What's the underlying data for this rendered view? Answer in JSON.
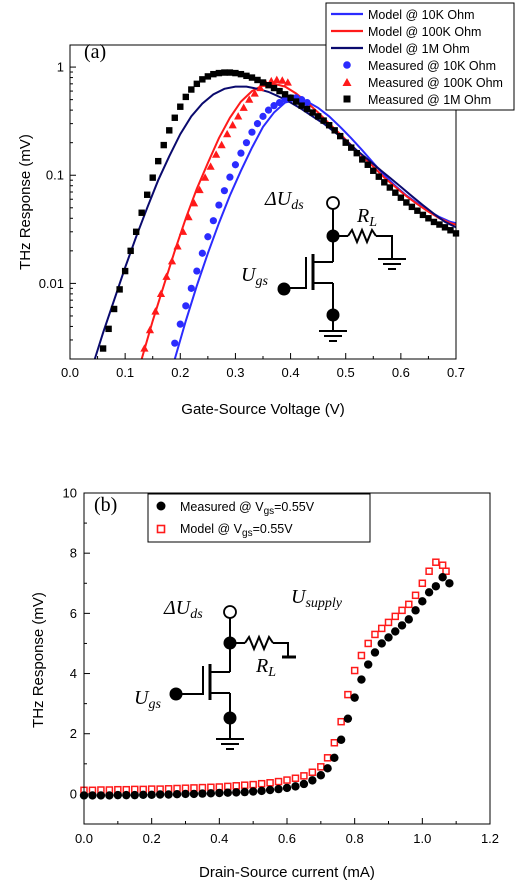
{
  "chart_data": [
    {
      "type": "line",
      "panel_label": "(a)",
      "xlabel": "Gate-Source Voltage (V)",
      "ylabel": "THz Response (mV)",
      "yscale": "log",
      "xlim": [
        0.0,
        0.7
      ],
      "ylim": [
        0.002,
        1.6
      ],
      "xticks": [
        "0.0",
        "0.1",
        "0.2",
        "0.3",
        "0.4",
        "0.5",
        "0.6",
        "0.7"
      ],
      "yticks": [
        "0.01",
        "0.1",
        "1"
      ],
      "legend_position": "top-right",
      "colors": {
        "blue": "#2b2bff",
        "red": "#ff1a1a",
        "navy": "#0a0a6e",
        "black": "#000000"
      },
      "series": [
        {
          "name": "Model @ 10K Ohm",
          "kind": "line",
          "color": "#2b2bff",
          "x": [
            0.19,
            0.21,
            0.23,
            0.25,
            0.27,
            0.29,
            0.31,
            0.33,
            0.35,
            0.37,
            0.39,
            0.41,
            0.43,
            0.45,
            0.47,
            0.49,
            0.51,
            0.53,
            0.55,
            0.57,
            0.59,
            0.61,
            0.63,
            0.65,
            0.67,
            0.69,
            0.7
          ],
          "y": [
            0.002,
            0.0045,
            0.0095,
            0.019,
            0.036,
            0.065,
            0.11,
            0.18,
            0.28,
            0.38,
            0.47,
            0.5,
            0.48,
            0.42,
            0.35,
            0.28,
            0.22,
            0.17,
            0.13,
            0.1,
            0.08,
            0.065,
            0.055,
            0.047,
            0.041,
            0.037,
            0.036
          ]
        },
        {
          "name": "Model @ 100K Ohm",
          "kind": "line",
          "color": "#ff1a1a",
          "x": [
            0.13,
            0.15,
            0.17,
            0.19,
            0.21,
            0.23,
            0.25,
            0.27,
            0.29,
            0.31,
            0.33,
            0.35,
            0.37,
            0.39,
            0.41,
            0.43,
            0.45,
            0.47,
            0.49,
            0.51,
            0.53,
            0.55,
            0.57,
            0.59,
            0.61,
            0.63,
            0.65,
            0.67,
            0.69,
            0.7
          ],
          "y": [
            0.002,
            0.0045,
            0.0095,
            0.02,
            0.04,
            0.075,
            0.13,
            0.22,
            0.34,
            0.48,
            0.6,
            0.68,
            0.7,
            0.66,
            0.57,
            0.47,
            0.38,
            0.3,
            0.24,
            0.19,
            0.15,
            0.12,
            0.095,
            0.078,
            0.064,
            0.054,
            0.046,
            0.04,
            0.036,
            0.035
          ]
        },
        {
          "name": "Model @ 1M Ohm",
          "kind": "line",
          "color": "#0a0a6e",
          "x": [
            0.045,
            0.06,
            0.08,
            0.1,
            0.12,
            0.14,
            0.16,
            0.18,
            0.2,
            0.22,
            0.24,
            0.26,
            0.28,
            0.3,
            0.32,
            0.34,
            0.36,
            0.38,
            0.4,
            0.42,
            0.44,
            0.46,
            0.48,
            0.5,
            0.52,
            0.54,
            0.56,
            0.58,
            0.6,
            0.62,
            0.64,
            0.66,
            0.68,
            0.7
          ],
          "y": [
            0.002,
            0.0035,
            0.007,
            0.014,
            0.027,
            0.05,
            0.09,
            0.15,
            0.24,
            0.35,
            0.46,
            0.56,
            0.63,
            0.66,
            0.66,
            0.63,
            0.59,
            0.53,
            0.47,
            0.41,
            0.35,
            0.3,
            0.25,
            0.21,
            0.17,
            0.14,
            0.115,
            0.095,
            0.078,
            0.064,
            0.053,
            0.044,
            0.037,
            0.033
          ]
        },
        {
          "name": "Measured @ 10K Ohm",
          "kind": "marker",
          "marker": "circle",
          "color": "#2b2bff",
          "x": [
            0.19,
            0.2,
            0.21,
            0.22,
            0.23,
            0.24,
            0.25,
            0.26,
            0.27,
            0.28,
            0.29,
            0.3,
            0.31,
            0.32,
            0.33,
            0.34,
            0.35,
            0.36,
            0.37,
            0.38,
            0.39,
            0.4,
            0.41,
            0.42,
            0.43
          ],
          "y": [
            0.0028,
            0.0042,
            0.0062,
            0.009,
            0.013,
            0.019,
            0.027,
            0.038,
            0.053,
            0.072,
            0.096,
            0.125,
            0.16,
            0.2,
            0.25,
            0.3,
            0.35,
            0.4,
            0.44,
            0.47,
            0.5,
            0.52,
            0.52,
            0.5,
            0.47
          ]
        },
        {
          "name": "Measured @ 100K Ohm",
          "kind": "marker",
          "marker": "triangle",
          "color": "#ff1a1a",
          "x": [
            0.135,
            0.145,
            0.155,
            0.165,
            0.175,
            0.185,
            0.195,
            0.205,
            0.215,
            0.225,
            0.235,
            0.245,
            0.255,
            0.265,
            0.275,
            0.285,
            0.295,
            0.305,
            0.315,
            0.325,
            0.335,
            0.345,
            0.355,
            0.365,
            0.375,
            0.385,
            0.395
          ],
          "y": [
            0.0025,
            0.0037,
            0.0055,
            0.008,
            0.0115,
            0.016,
            0.022,
            0.03,
            0.041,
            0.055,
            0.073,
            0.095,
            0.12,
            0.155,
            0.19,
            0.24,
            0.29,
            0.35,
            0.42,
            0.5,
            0.57,
            0.64,
            0.7,
            0.74,
            0.76,
            0.75,
            0.72
          ]
        },
        {
          "name": "Measured @ 1M Ohm",
          "kind": "marker",
          "marker": "square",
          "color": "#000000",
          "x": [
            0.06,
            0.07,
            0.08,
            0.09,
            0.1,
            0.11,
            0.12,
            0.13,
            0.14,
            0.15,
            0.16,
            0.17,
            0.18,
            0.19,
            0.2,
            0.21,
            0.22,
            0.23,
            0.24,
            0.25,
            0.26,
            0.27,
            0.28,
            0.29,
            0.3,
            0.31,
            0.32,
            0.33,
            0.34,
            0.35,
            0.36,
            0.37,
            0.38,
            0.39,
            0.4,
            0.41,
            0.42,
            0.43,
            0.44,
            0.45,
            0.46,
            0.47,
            0.48,
            0.49,
            0.5,
            0.51,
            0.52,
            0.53,
            0.54,
            0.55,
            0.56,
            0.57,
            0.58,
            0.59,
            0.6,
            0.61,
            0.62,
            0.63,
            0.64,
            0.65,
            0.66,
            0.67,
            0.68,
            0.69,
            0.7
          ],
          "y": [
            0.0025,
            0.0038,
            0.0058,
            0.0088,
            0.013,
            0.02,
            0.03,
            0.045,
            0.066,
            0.095,
            0.135,
            0.19,
            0.26,
            0.34,
            0.43,
            0.53,
            0.62,
            0.7,
            0.77,
            0.82,
            0.86,
            0.88,
            0.89,
            0.89,
            0.88,
            0.86,
            0.83,
            0.8,
            0.76,
            0.72,
            0.68,
            0.64,
            0.6,
            0.56,
            0.52,
            0.48,
            0.44,
            0.41,
            0.38,
            0.35,
            0.32,
            0.29,
            0.26,
            0.23,
            0.2,
            0.18,
            0.16,
            0.14,
            0.125,
            0.11,
            0.097,
            0.086,
            0.077,
            0.069,
            0.062,
            0.056,
            0.051,
            0.047,
            0.043,
            0.04,
            0.037,
            0.035,
            0.033,
            0.031,
            0.029
          ]
        }
      ],
      "inset": {
        "delta_label": "ΔU",
        "delta_sub": "ds",
        "load_label": "R",
        "load_sub": "L",
        "gate_label": "U",
        "gate_sub": "gs"
      }
    },
    {
      "type": "scatter",
      "panel_label": "(b)",
      "xlabel": "Drain-Source current (mA)",
      "ylabel": "THz Response (mV)",
      "xlim": [
        0.0,
        1.2
      ],
      "ylim": [
        -1.0,
        10.0
      ],
      "xticks": [
        "0.0",
        "0.2",
        "0.4",
        "0.6",
        "0.8",
        "1.0",
        "1.2"
      ],
      "yticks": [
        "0",
        "2",
        "4",
        "6",
        "8",
        "10"
      ],
      "legend_position": "top-right",
      "series": [
        {
          "name_prefix": "Measured @ V",
          "name_sub": "gs",
          "name_suffix": "=0.55V",
          "marker": "circle",
          "color": "#000000",
          "x": [
            0.0,
            0.025,
            0.05,
            0.075,
            0.1,
            0.125,
            0.15,
            0.175,
            0.2,
            0.225,
            0.25,
            0.275,
            0.3,
            0.325,
            0.35,
            0.375,
            0.4,
            0.425,
            0.45,
            0.475,
            0.5,
            0.525,
            0.55,
            0.575,
            0.6,
            0.625,
            0.65,
            0.675,
            0.7,
            0.72,
            0.74,
            0.76,
            0.78,
            0.8,
            0.82,
            0.84,
            0.86,
            0.88,
            0.9,
            0.92,
            0.94,
            0.96,
            0.98,
            1.0,
            1.02,
            1.04,
            1.06,
            1.08
          ],
          "y": [
            -0.05,
            -0.05,
            -0.05,
            -0.05,
            -0.04,
            -0.04,
            -0.04,
            -0.03,
            -0.03,
            -0.02,
            -0.02,
            -0.01,
            0.0,
            0.0,
            0.01,
            0.02,
            0.03,
            0.04,
            0.05,
            0.06,
            0.08,
            0.1,
            0.13,
            0.16,
            0.2,
            0.25,
            0.33,
            0.45,
            0.62,
            0.85,
            1.2,
            1.8,
            2.5,
            3.2,
            3.8,
            4.3,
            4.7,
            5.0,
            5.2,
            5.4,
            5.6,
            5.8,
            6.1,
            6.4,
            6.7,
            6.9,
            7.2,
            7.0
          ]
        },
        {
          "name_prefix": "Model @ V",
          "name_sub": "gs",
          "name_suffix": "=0.55V",
          "marker": "square-open",
          "color": "#ff1a1a",
          "x": [
            0.0,
            0.025,
            0.05,
            0.075,
            0.1,
            0.125,
            0.15,
            0.175,
            0.2,
            0.225,
            0.25,
            0.275,
            0.3,
            0.325,
            0.35,
            0.375,
            0.4,
            0.425,
            0.45,
            0.475,
            0.5,
            0.525,
            0.55,
            0.575,
            0.6,
            0.625,
            0.65,
            0.675,
            0.7,
            0.72,
            0.74,
            0.76,
            0.78,
            0.8,
            0.82,
            0.84,
            0.86,
            0.88,
            0.9,
            0.92,
            0.94,
            0.96,
            0.98,
            1.0,
            1.02,
            1.04,
            1.06,
            1.07
          ],
          "y": [
            0.12,
            0.12,
            0.13,
            0.13,
            0.14,
            0.14,
            0.15,
            0.15,
            0.16,
            0.16,
            0.17,
            0.18,
            0.19,
            0.2,
            0.21,
            0.22,
            0.23,
            0.25,
            0.27,
            0.29,
            0.31,
            0.34,
            0.37,
            0.41,
            0.46,
            0.52,
            0.6,
            0.72,
            0.9,
            1.2,
            1.7,
            2.4,
            3.3,
            4.1,
            4.6,
            5.0,
            5.3,
            5.5,
            5.7,
            5.9,
            6.1,
            6.3,
            6.6,
            7.0,
            7.4,
            7.7,
            7.6,
            7.4
          ]
        }
      ],
      "inset": {
        "delta_label": "ΔU",
        "delta_sub": "ds",
        "supply_label": "U",
        "supply_sub": "supply",
        "load_label": "R",
        "load_sub": "L",
        "gate_label": "U",
        "gate_sub": "gs"
      }
    }
  ]
}
